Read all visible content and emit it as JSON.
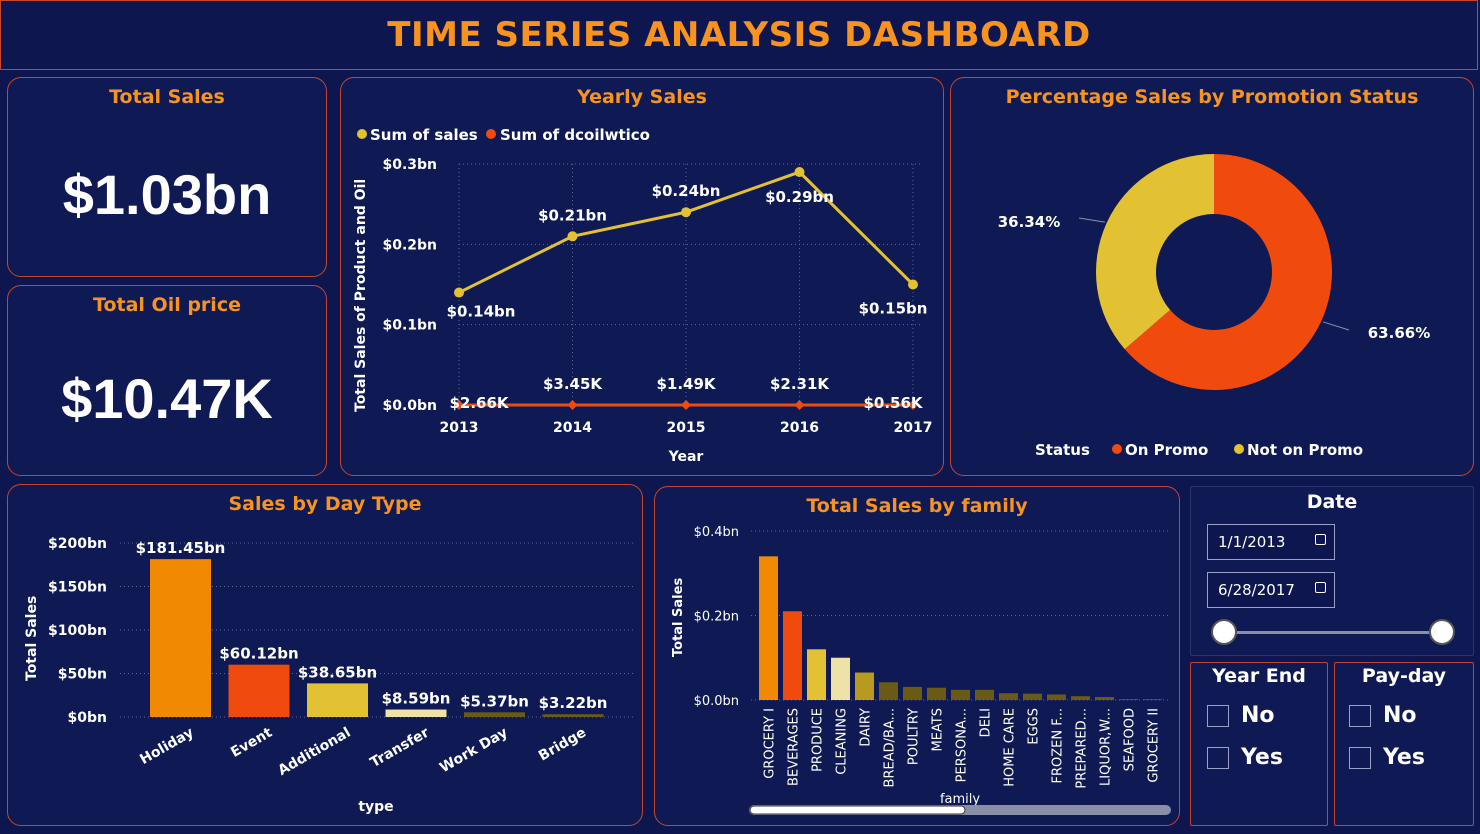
{
  "dashboard_title": "TIME SERIES ANALYSIS DASHBOARD",
  "kpis": {
    "total_sales": {
      "title": "Total Sales",
      "value": "$1.03bn"
    },
    "total_oil": {
      "title": "Total Oil price",
      "value": "$10.47K"
    }
  },
  "colors": {
    "accent": "#f7931e",
    "sales": "#e2c232",
    "oil": "#f04b0c",
    "background": "#0e1650"
  },
  "yearly": {
    "title": "Yearly Sales",
    "legend": [
      "Sum of sales",
      "Sum of dcoilwtico"
    ],
    "ylabel": "Total Sales of Product and Oil",
    "xlabel": "Year",
    "yticks": [
      "$0.3bn",
      "$0.2bn",
      "$0.1bn",
      "$0.0bn"
    ],
    "years": [
      "2013",
      "2014",
      "2015",
      "2016",
      "2017"
    ],
    "sales_labels": [
      "$0.14bn",
      "$0.21bn",
      "$0.24bn",
      "$0.29bn",
      "$0.15bn"
    ],
    "oil_labels": [
      "$2.66K",
      "$3.45K",
      "$1.49K",
      "$2.31K",
      "$0.56K"
    ]
  },
  "promo": {
    "title": "Percentage Sales by Promotion Status",
    "legend_title": "Status",
    "legend": [
      "On Promo",
      "Not on Promo"
    ],
    "labels": [
      "63.66%",
      "36.34%"
    ]
  },
  "daytype": {
    "title": "Sales by Day Type",
    "ylabel": "Total Sales",
    "xlabel": "type",
    "yticks": [
      "$200bn",
      "$150bn",
      "$100bn",
      "$50bn",
      "$0bn"
    ],
    "categories": [
      "Holiday",
      "Event",
      "Additional",
      "Transfer",
      "Work Day",
      "Bridge"
    ],
    "labels": [
      "$181.45bn",
      "$60.12bn",
      "$38.65bn",
      "$8.59bn",
      "$5.37bn",
      "$3.22bn"
    ]
  },
  "family": {
    "title": "Total Sales by family",
    "ylabel": "Total Sales",
    "xlabel": "family",
    "yticks": [
      "$0.4bn",
      "$0.2bn",
      "$0.0bn"
    ],
    "categories": [
      "GROCERY I",
      "BEVERAGES",
      "PRODUCE",
      "CLEANING",
      "DAIRY",
      "BREAD/BA...",
      "POULTRY",
      "MEATS",
      "PERSONA...",
      "DELI",
      "HOME CARE",
      "EGGS",
      "FROZEN F...",
      "PREPARED...",
      "LIQUOR,W...",
      "SEAFOOD",
      "GROCERY II"
    ]
  },
  "date_slicer": {
    "title": "Date",
    "start": "1/1/2013",
    "end": "6/28/2017"
  },
  "year_end": {
    "title": "Year End",
    "options": [
      "No",
      "Yes"
    ]
  },
  "payday": {
    "title": "Pay-day",
    "options": [
      "No",
      "Yes"
    ]
  },
  "chart_data": [
    {
      "type": "line",
      "title": "Yearly Sales",
      "xlabel": "Year",
      "ylabel": "Total Sales of Product and Oil",
      "x": [
        2013,
        2014,
        2015,
        2016,
        2017
      ],
      "ylim": [
        0,
        0.3
      ],
      "series": [
        {
          "name": "Sum of sales",
          "values": [
            0.14,
            0.21,
            0.24,
            0.29,
            0.15
          ],
          "unit": "bn"
        },
        {
          "name": "Sum of dcoilwtico",
          "values": [
            2.66,
            3.45,
            1.49,
            2.31,
            0.56
          ],
          "unit": "K"
        }
      ]
    },
    {
      "type": "pie",
      "title": "Percentage Sales by Promotion Status",
      "categories": [
        "On Promo",
        "Not on Promo"
      ],
      "values": [
        63.66,
        36.34
      ]
    },
    {
      "type": "bar",
      "title": "Sales by Day Type",
      "xlabel": "type",
      "ylabel": "Total Sales",
      "categories": [
        "Holiday",
        "Event",
        "Additional",
        "Transfer",
        "Work Day",
        "Bridge"
      ],
      "values": [
        181.45,
        60.12,
        38.65,
        8.59,
        5.37,
        3.22
      ],
      "ylim": [
        0,
        200
      ]
    },
    {
      "type": "bar",
      "title": "Total Sales by family",
      "xlabel": "family",
      "ylabel": "Total Sales",
      "categories": [
        "GROCERY I",
        "BEVERAGES",
        "PRODUCE",
        "CLEANING",
        "DAIRY",
        "BREAD/BA...",
        "POULTRY",
        "MEATS",
        "PERSONA...",
        "DELI",
        "HOME CARE",
        "EGGS",
        "FROZEN F...",
        "PREPARED...",
        "LIQUOR,W...",
        "SEAFOOD",
        "GROCERY II"
      ],
      "values": [
        0.34,
        0.21,
        0.12,
        0.1,
        0.065,
        0.042,
        0.031,
        0.029,
        0.024,
        0.024,
        0.016,
        0.015,
        0.013,
        0.009,
        0.007,
        0.002,
        0.002
      ],
      "ylim": [
        0,
        0.4
      ]
    }
  ]
}
